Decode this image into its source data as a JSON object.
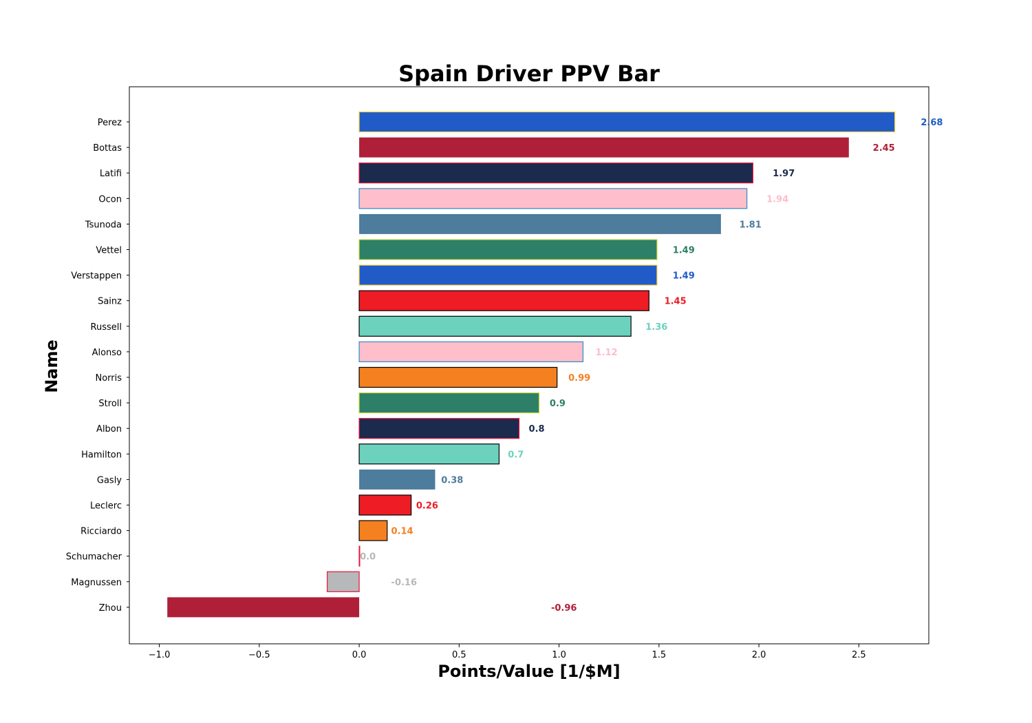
{
  "chart_data": {
    "type": "bar",
    "orientation": "horizontal",
    "title": "Spain Driver PPV Bar",
    "xlabel": "Points/Value [1/$M]",
    "ylabel": "Name",
    "xlim": [
      -1.15,
      2.85
    ],
    "xticks": [
      -1.0,
      -0.5,
      0.0,
      0.5,
      1.0,
      1.5,
      2.0,
      2.5
    ],
    "xtick_labels": [
      "−1.0",
      "−0.5",
      "0.0",
      "0.5",
      "1.0",
      "1.5",
      "2.0",
      "2.5"
    ],
    "grid": false,
    "legend": "none",
    "bars": [
      {
        "name": "Perez",
        "value": 2.68,
        "label": "2.68",
        "fill": "#215BC8",
        "edge": "#F3D03E"
      },
      {
        "name": "Bottas",
        "value": 2.45,
        "label": "2.45",
        "fill": "#AF1F38",
        "edge": "#FFFFFF"
      },
      {
        "name": "Latifi",
        "value": 1.97,
        "label": "1.97",
        "fill": "#1C2A4E",
        "edge": "#E8123A"
      },
      {
        "name": "Ocon",
        "value": 1.94,
        "label": "1.94",
        "fill": "#FEBECA",
        "edge": "#2F8BC9"
      },
      {
        "name": "Tsunoda",
        "value": 1.81,
        "label": "1.81",
        "fill": "#4D7C9C",
        "edge": "#FFFFFF"
      },
      {
        "name": "Vettel",
        "value": 1.49,
        "label": "1.49",
        "fill": "#2E7F68",
        "edge": "#C6D83A"
      },
      {
        "name": "Verstappen",
        "value": 1.49,
        "label": "1.49",
        "fill": "#215BC8",
        "edge": "#F3D03E"
      },
      {
        "name": "Sainz",
        "value": 1.45,
        "label": "1.45",
        "fill": "#EE1C25",
        "edge": "#000000"
      },
      {
        "name": "Russell",
        "value": 1.36,
        "label": "1.36",
        "fill": "#6CD2BE",
        "edge": "#000000"
      },
      {
        "name": "Alonso",
        "value": 1.12,
        "label": "1.12",
        "fill": "#FEBECA",
        "edge": "#2F8BC9"
      },
      {
        "name": "Norris",
        "value": 0.99,
        "label": "0.99",
        "fill": "#F58020",
        "edge": "#000000"
      },
      {
        "name": "Stroll",
        "value": 0.9,
        "label": "0.9",
        "fill": "#2E7F68",
        "edge": "#C6D83A"
      },
      {
        "name": "Albon",
        "value": 0.8,
        "label": "0.8",
        "fill": "#1C2A4E",
        "edge": "#E8123A"
      },
      {
        "name": "Hamilton",
        "value": 0.7,
        "label": "0.7",
        "fill": "#6CD2BE",
        "edge": "#000000"
      },
      {
        "name": "Gasly",
        "value": 0.38,
        "label": "0.38",
        "fill": "#4D7C9C",
        "edge": "#FFFFFF"
      },
      {
        "name": "Leclerc",
        "value": 0.26,
        "label": "0.26",
        "fill": "#EE1C25",
        "edge": "#000000"
      },
      {
        "name": "Ricciardo",
        "value": 0.14,
        "label": "0.14",
        "fill": "#F58020",
        "edge": "#000000"
      },
      {
        "name": "Schumacher",
        "value": 0.0,
        "label": "0.0",
        "fill": "#B6B8BA",
        "edge": "#E8123A"
      },
      {
        "name": "Magnussen",
        "value": -0.16,
        "label": "-0.16",
        "fill": "#B6B8BA",
        "edge": "#E8123A"
      },
      {
        "name": "Zhou",
        "value": -0.96,
        "label": "-0.96",
        "fill": "#AF1F38",
        "edge": "#FFFFFF"
      }
    ]
  }
}
